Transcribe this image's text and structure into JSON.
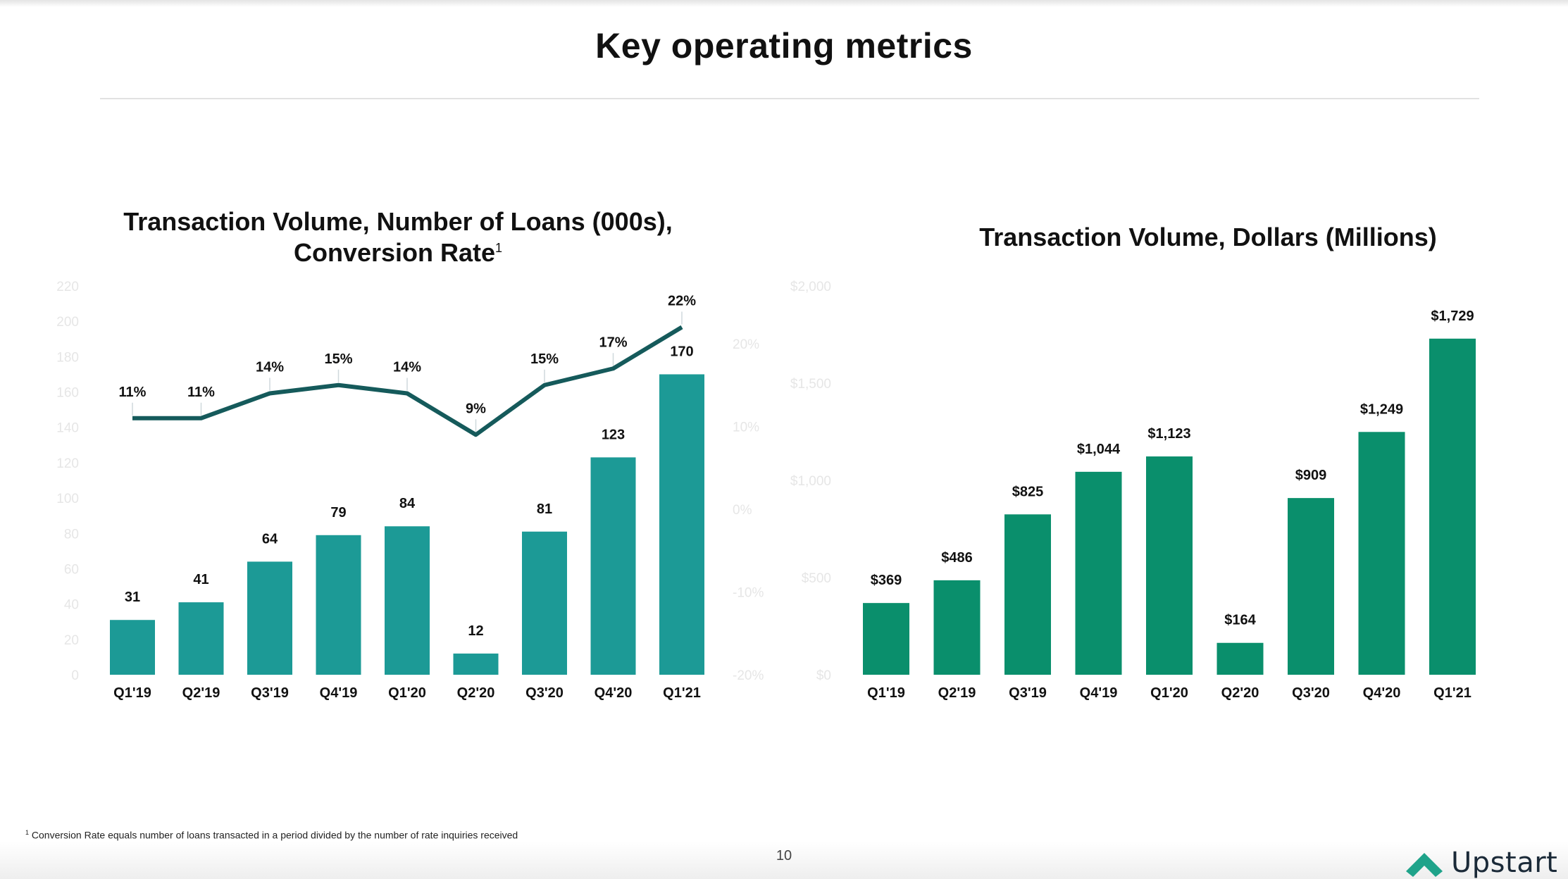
{
  "page": {
    "title": "Key operating metrics",
    "footnote_marker": "1",
    "footnote": "Conversion Rate equals number of loans transacted in a period divided by the number of rate inquiries received",
    "page_number": "10",
    "brand": "Upstart",
    "logo_icon": "upstart-chevron-icon"
  },
  "colors": {
    "loans_bar": "#1c9a96",
    "dollars_bar": "#0a8f6c",
    "conversion_line": "#155a5b",
    "faint_axis": "#e6e6e6",
    "text": "#111111"
  },
  "left_chart": {
    "title_line1": "Transaction Volume, Number of Loans (000s),",
    "title_line2": "Conversion Rate",
    "title_sup": "1"
  },
  "right_chart": {
    "title": "Transaction Volume, Dollars (Millions)"
  },
  "chart_data": [
    {
      "type": "bar",
      "title": "Transaction Volume, Number of Loans (000s), Conversion Rate",
      "categories": [
        "Q1'19",
        "Q2'19",
        "Q3'19",
        "Q4'19",
        "Q1'20",
        "Q2'20",
        "Q3'20",
        "Q4'20",
        "Q1'21"
      ],
      "series": [
        {
          "values": [
            31,
            41,
            64,
            79,
            84,
            12,
            81,
            123,
            170
          ],
          "labels": [
            "31",
            "41",
            "64",
            "79",
            "84",
            "12",
            "81",
            "123",
            "170"
          ],
          "axis": "left"
        },
        {
          "type": "line",
          "values": [
            11,
            11,
            14,
            15,
            14,
            9,
            15,
            17,
            22
          ],
          "labels": [
            "11%",
            "11%",
            "14%",
            "15%",
            "14%",
            "9%",
            "15%",
            "17%",
            "22%"
          ],
          "axis": "right"
        }
      ],
      "ylim": [
        0,
        220
      ],
      "yticks": [
        "0",
        "20",
        "40",
        "60",
        "80",
        "100",
        "120",
        "140",
        "160",
        "180",
        "200",
        "220"
      ],
      "y2lim": [
        -20,
        27
      ],
      "y2ticks": [
        {
          "value": -20,
          "label": "-20%"
        },
        {
          "value": -10,
          "label": "-10%"
        },
        {
          "value": 0,
          "label": "0%"
        },
        {
          "value": 10,
          "label": "10%"
        },
        {
          "value": 20,
          "label": "20%"
        }
      ],
      "grid": false,
      "legend": "none"
    },
    {
      "type": "bar",
      "title": "Transaction Volume, Dollars (Millions)",
      "categories": [
        "Q1'19",
        "Q2'19",
        "Q3'19",
        "Q4'19",
        "Q1'20",
        "Q2'20",
        "Q3'20",
        "Q4'20",
        "Q1'21"
      ],
      "values": [
        369,
        486,
        825,
        1044,
        1123,
        164,
        909,
        1249,
        1729
      ],
      "labels": [
        "$369",
        "$486",
        "$825",
        "$1,044",
        "$1,123",
        "$164",
        "$909",
        "$1,249",
        "$1,729"
      ],
      "ylim": [
        0,
        2000
      ],
      "yticks": [
        "$0",
        "$500",
        "$1,000",
        "$1,500",
        "$2,000"
      ],
      "grid": false,
      "legend": "none"
    }
  ]
}
